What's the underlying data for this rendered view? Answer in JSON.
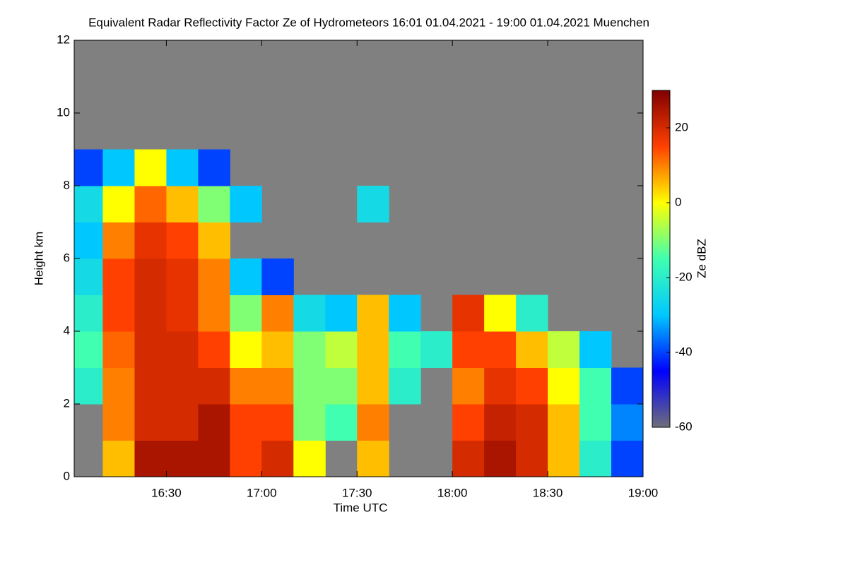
{
  "chart_data": {
    "type": "heatmap",
    "title": "Equivalent Radar Reflectivity Factor Ze of Hydrometeors   16:01 01.04.2021 - 19:00 01.04.2021 Muenchen",
    "x_label": "Time UTC",
    "y_label": "Height km",
    "colorbar_label": "Ze dBZ",
    "xlim": [
      "16:01",
      "19:00"
    ],
    "xticks": [
      "16:30",
      "17:00",
      "17:30",
      "18:00",
      "18:30",
      "19:00"
    ],
    "ylim": [
      0,
      12
    ],
    "yticks": [
      0,
      2,
      4,
      6,
      8,
      10,
      12
    ],
    "zlim": [
      -60,
      30
    ],
    "zticks": [
      -60,
      -40,
      -20,
      0,
      20
    ],
    "colormap": [
      "#6e6e7a",
      "#0000ff",
      "#00c8ff",
      "#40ffb0",
      "#ffff00",
      "#ff4000",
      "#800000"
    ],
    "background": "#808080",
    "x": [
      "16:05",
      "16:15",
      "16:25",
      "16:35",
      "16:45",
      "16:55",
      "17:05",
      "17:15",
      "17:25",
      "17:35",
      "17:45",
      "17:55",
      "18:05",
      "18:15",
      "18:25",
      "18:35",
      "18:45",
      "18:55"
    ],
    "y": [
      0.5,
      1.5,
      2.5,
      3.5,
      4.5,
      5.5,
      6.5,
      7.5,
      8.5,
      9.5,
      10.5,
      11.5
    ],
    "z": [
      [
        null,
        5,
        25,
        25,
        25,
        15,
        20,
        0,
        null,
        5,
        null,
        null,
        20,
        25,
        20,
        5,
        -20,
        -40
      ],
      [
        null,
        10,
        20,
        20,
        25,
        15,
        15,
        -10,
        -15,
        10,
        null,
        null,
        15,
        22,
        20,
        5,
        -15,
        -35
      ],
      [
        -20,
        10,
        20,
        20,
        20,
        10,
        10,
        -10,
        -10,
        5,
        -20,
        null,
        10,
        18,
        15,
        0,
        -15,
        -40
      ],
      [
        -15,
        12,
        20,
        20,
        15,
        0,
        5,
        -10,
        -5,
        5,
        -15,
        -20,
        15,
        15,
        5,
        -5,
        -30,
        null
      ],
      [
        -20,
        15,
        20,
        18,
        10,
        -10,
        10,
        -25,
        -30,
        5,
        -30,
        null,
        18,
        0,
        -20,
        null,
        null,
        null
      ],
      [
        -25,
        15,
        20,
        18,
        10,
        -30,
        -40,
        null,
        null,
        null,
        null,
        null,
        null,
        null,
        null,
        null,
        null,
        null
      ],
      [
        -30,
        10,
        18,
        15,
        5,
        null,
        null,
        null,
        null,
        null,
        null,
        null,
        null,
        null,
        null,
        null,
        null,
        null
      ],
      [
        -25,
        0,
        12,
        5,
        -10,
        -30,
        null,
        null,
        null,
        -25,
        null,
        null,
        null,
        null,
        null,
        null,
        null,
        null
      ],
      [
        -40,
        -30,
        0,
        -30,
        -40,
        null,
        null,
        null,
        null,
        null,
        null,
        null,
        null,
        null,
        null,
        null,
        null,
        null
      ],
      [
        null,
        null,
        null,
        null,
        null,
        null,
        null,
        null,
        null,
        null,
        null,
        null,
        null,
        null,
        null,
        null,
        null,
        null
      ],
      [
        null,
        null,
        null,
        null,
        null,
        null,
        null,
        null,
        null,
        null,
        null,
        null,
        null,
        null,
        null,
        null,
        null,
        null
      ],
      [
        null,
        null,
        null,
        null,
        null,
        null,
        null,
        null,
        null,
        null,
        null,
        null,
        null,
        null,
        null,
        null,
        null,
        null
      ]
    ]
  }
}
